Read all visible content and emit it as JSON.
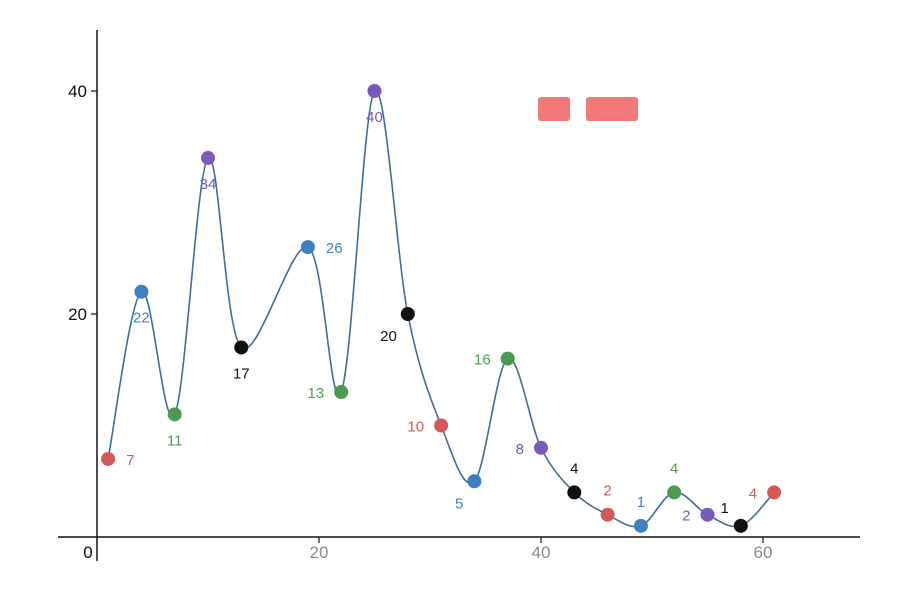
{
  "chart_data": {
    "type": "line",
    "title": "",
    "xlabel": "",
    "ylabel": "",
    "xlim": [
      0,
      68
    ],
    "ylim": [
      0,
      46
    ],
    "x_ticks": [
      {
        "value": 0,
        "label": "0"
      },
      {
        "value": 20,
        "label": "20"
      },
      {
        "value": 40,
        "label": "40"
      },
      {
        "value": 60,
        "label": "60"
      }
    ],
    "y_ticks": [
      {
        "value": 20,
        "label": "20"
      },
      {
        "value": 40,
        "label": "40"
      }
    ],
    "grid": false,
    "smooth": true,
    "line_color": "#3f6e95",
    "point_colors": [
      "#d05a5a",
      "#3f7fbf",
      "#4c9a52",
      "#7a5ab8",
      "#111111"
    ],
    "series": [
      {
        "points": [
          {
            "x": 1,
            "y": 7,
            "label": "7",
            "color_index": 0,
            "label_pos": "right"
          },
          {
            "x": 4,
            "y": 22,
            "label": "22",
            "color_index": 1,
            "label_pos": "below"
          },
          {
            "x": 7,
            "y": 11,
            "label": "11",
            "color_index": 2,
            "label_pos": "below"
          },
          {
            "x": 10,
            "y": 34,
            "label": "34",
            "color_index": 3,
            "label_pos": "below"
          },
          {
            "x": 13,
            "y": 17,
            "label": "17",
            "color_index": 4,
            "label_pos": "below"
          },
          {
            "x": 19,
            "y": 26,
            "label": "26",
            "color_index": 1,
            "label_pos": "right"
          },
          {
            "x": 22,
            "y": 13,
            "label": "13",
            "color_index": 2,
            "label_pos": "left"
          },
          {
            "x": 25,
            "y": 40,
            "label": "40",
            "color_index": 3,
            "label_pos": "below"
          },
          {
            "x": 28,
            "y": 20,
            "label": "20",
            "color_index": 4,
            "label_pos": "below-left"
          },
          {
            "x": 31,
            "y": 10,
            "label": "10",
            "color_index": 0,
            "label_pos": "left"
          },
          {
            "x": 34,
            "y": 5,
            "label": "5",
            "color_index": 1,
            "label_pos": "below-left"
          },
          {
            "x": 37,
            "y": 16,
            "label": "16",
            "color_index": 2,
            "label_pos": "left"
          },
          {
            "x": 40,
            "y": 8,
            "label": "8",
            "color_index": 3,
            "label_pos": "left"
          },
          {
            "x": 43,
            "y": 4,
            "label": "4",
            "color_index": 4,
            "label_pos": "above"
          },
          {
            "x": 46,
            "y": 2,
            "label": "2",
            "color_index": 0,
            "label_pos": "above"
          },
          {
            "x": 49,
            "y": 1,
            "label": "1",
            "color_index": 1,
            "label_pos": "above"
          },
          {
            "x": 52,
            "y": 4,
            "label": "4",
            "color_index": 2,
            "label_pos": "above"
          },
          {
            "x": 55,
            "y": 2,
            "label": "2",
            "color_index": 3,
            "label_pos": "left"
          },
          {
            "x": 58,
            "y": 1,
            "label": "1",
            "color_index": 4,
            "label_pos": "above-left"
          },
          {
            "x": 61,
            "y": 4,
            "label": "4",
            "color_index": 0,
            "label_pos": "left"
          }
        ]
      }
    ]
  }
}
